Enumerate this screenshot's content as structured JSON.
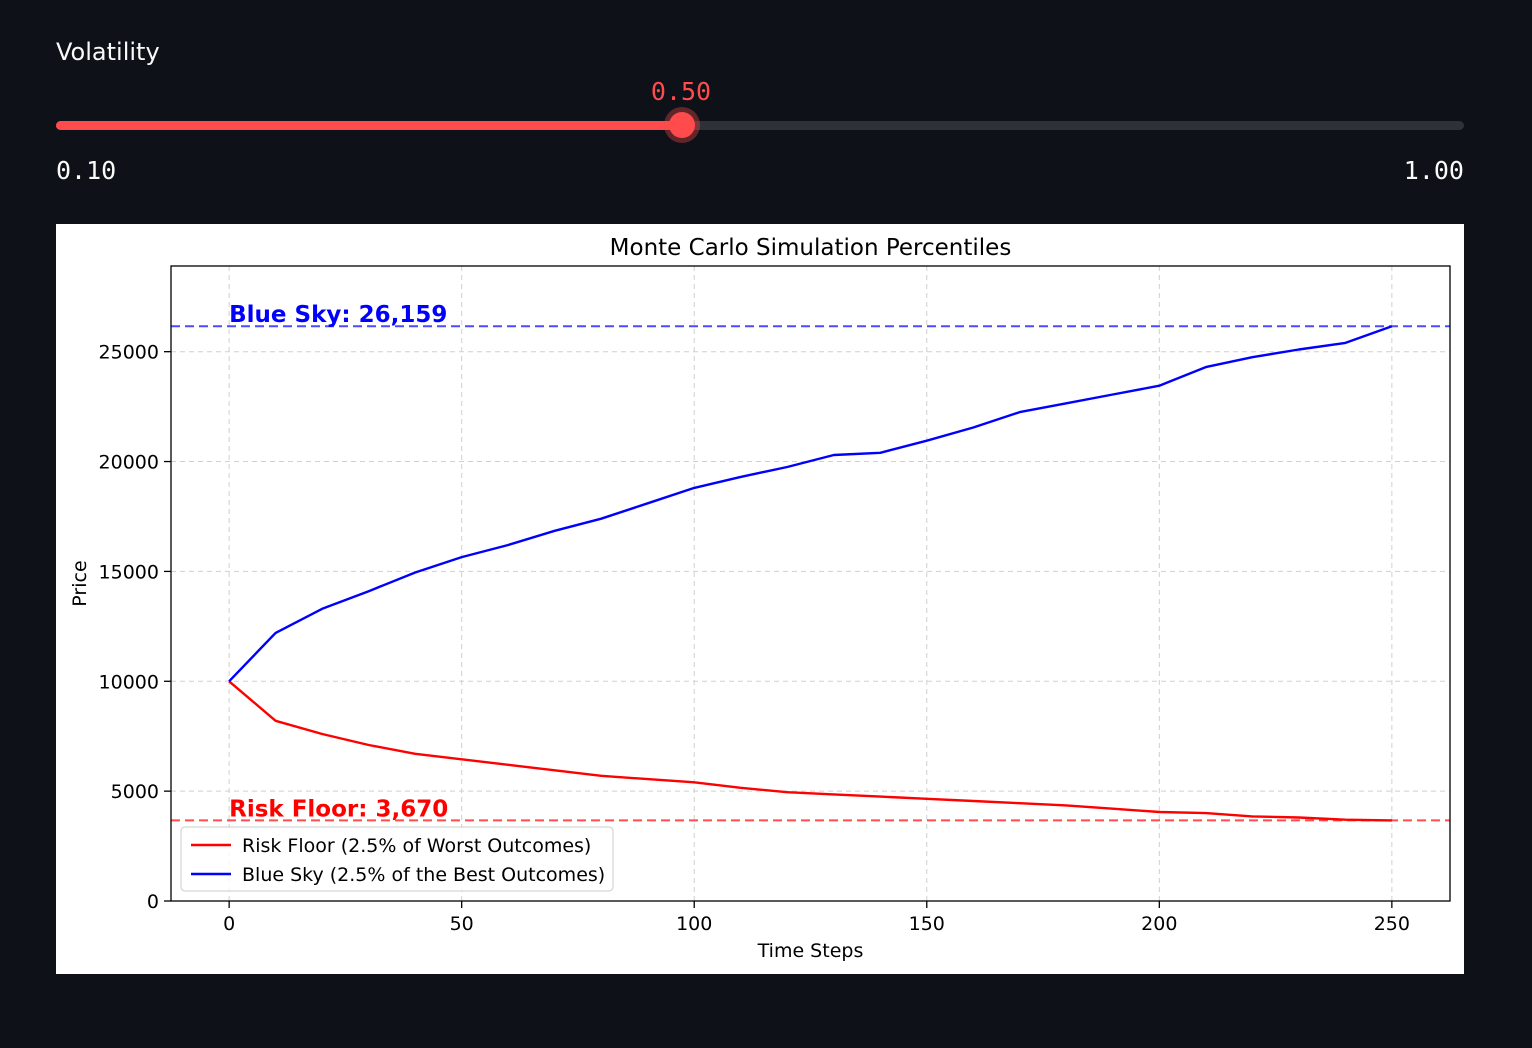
{
  "slider": {
    "label": "Volatility",
    "value": 0.5,
    "value_label": "0.50",
    "min": 0.1,
    "max": 1.0,
    "min_label": "0.10",
    "max_label": "1.00",
    "accent_color": "#ff4b4b",
    "track_color": "#2f3139"
  },
  "chart_data": {
    "type": "line",
    "title": "Monte Carlo Simulation Percentiles",
    "xlabel": "Time Steps",
    "ylabel": "Price",
    "xlim": [
      -12.5,
      262.5
    ],
    "ylim": [
      0,
      28900
    ],
    "xticks": [
      0,
      50,
      100,
      150,
      200,
      250
    ],
    "yticks": [
      0,
      5000,
      10000,
      15000,
      20000,
      25000
    ],
    "grid": true,
    "legend_position": "lower-left",
    "series": [
      {
        "name": "Risk Floor (2.5% of Worst Outcomes)",
        "color": "#ff0000",
        "x": [
          0,
          10,
          20,
          30,
          40,
          50,
          60,
          70,
          80,
          90,
          100,
          110,
          120,
          130,
          140,
          150,
          160,
          170,
          180,
          190,
          200,
          210,
          220,
          230,
          240,
          250
        ],
        "values": [
          10000,
          8200,
          7600,
          7100,
          6700,
          6450,
          6200,
          5950,
          5700,
          5550,
          5400,
          5150,
          4950,
          4850,
          4750,
          4650,
          4550,
          4450,
          4350,
          4200,
          4050,
          4000,
          3850,
          3800,
          3700,
          3670
        ]
      },
      {
        "name": "Blue Sky (2.5% of the Best Outcomes)",
        "color": "#0000ff",
        "x": [
          0,
          10,
          20,
          30,
          40,
          50,
          60,
          70,
          80,
          90,
          100,
          110,
          120,
          130,
          140,
          150,
          160,
          170,
          180,
          190,
          200,
          210,
          220,
          230,
          240,
          250
        ],
        "values": [
          10000,
          12200,
          13300,
          14100,
          14950,
          15650,
          16200,
          16850,
          17400,
          18100,
          18800,
          19300,
          19750,
          20300,
          20400,
          20950,
          21550,
          22250,
          22650,
          23050,
          23450,
          24300,
          24750,
          25100,
          25400,
          26159
        ]
      }
    ],
    "reference_lines": [
      {
        "label": "Blue Sky: 26,159",
        "value": 26159,
        "color": "#0000ff"
      },
      {
        "label": "Risk Floor: 3,670",
        "value": 3670,
        "color": "#ff0000"
      }
    ]
  }
}
